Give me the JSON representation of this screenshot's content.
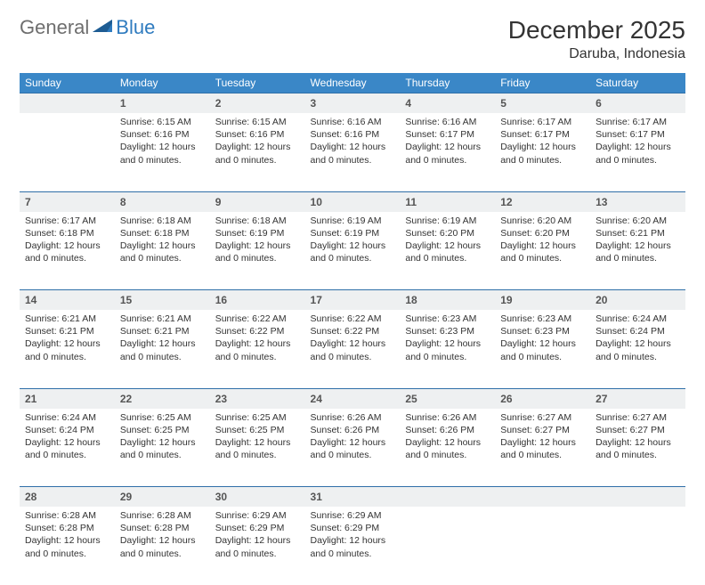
{
  "logo": {
    "general": "General",
    "blue": "Blue"
  },
  "title": "December 2025",
  "location": "Daruba, Indonesia",
  "colors": {
    "header_bg": "#3a87c7",
    "header_text": "#ffffff",
    "daynum_bg": "#eef0f1",
    "row_border": "#2f6fa8",
    "body_text": "#333333",
    "logo_gray": "#6e6e6e",
    "logo_blue": "#2f7bbf",
    "page_bg": "#ffffff"
  },
  "typography": {
    "title_fontsize": 28,
    "location_fontsize": 16,
    "weekday_fontsize": 12,
    "daynum_fontsize": 12,
    "cell_fontsize": 10.5
  },
  "weekdays": [
    "Sunday",
    "Monday",
    "Tuesday",
    "Wednesday",
    "Thursday",
    "Friday",
    "Saturday"
  ],
  "rows": [
    {
      "nums": [
        "",
        "1",
        "2",
        "3",
        "4",
        "5",
        "6"
      ],
      "cells": [
        null,
        {
          "sunrise": "6:15 AM",
          "sunset": "6:16 PM",
          "daylight": "12 hours and 0 minutes."
        },
        {
          "sunrise": "6:15 AM",
          "sunset": "6:16 PM",
          "daylight": "12 hours and 0 minutes."
        },
        {
          "sunrise": "6:16 AM",
          "sunset": "6:16 PM",
          "daylight": "12 hours and 0 minutes."
        },
        {
          "sunrise": "6:16 AM",
          "sunset": "6:17 PM",
          "daylight": "12 hours and 0 minutes."
        },
        {
          "sunrise": "6:17 AM",
          "sunset": "6:17 PM",
          "daylight": "12 hours and 0 minutes."
        },
        {
          "sunrise": "6:17 AM",
          "sunset": "6:17 PM",
          "daylight": "12 hours and 0 minutes."
        }
      ]
    },
    {
      "nums": [
        "7",
        "8",
        "9",
        "10",
        "11",
        "12",
        "13"
      ],
      "cells": [
        {
          "sunrise": "6:17 AM",
          "sunset": "6:18 PM",
          "daylight": "12 hours and 0 minutes."
        },
        {
          "sunrise": "6:18 AM",
          "sunset": "6:18 PM",
          "daylight": "12 hours and 0 minutes."
        },
        {
          "sunrise": "6:18 AM",
          "sunset": "6:19 PM",
          "daylight": "12 hours and 0 minutes."
        },
        {
          "sunrise": "6:19 AM",
          "sunset": "6:19 PM",
          "daylight": "12 hours and 0 minutes."
        },
        {
          "sunrise": "6:19 AM",
          "sunset": "6:20 PM",
          "daylight": "12 hours and 0 minutes."
        },
        {
          "sunrise": "6:20 AM",
          "sunset": "6:20 PM",
          "daylight": "12 hours and 0 minutes."
        },
        {
          "sunrise": "6:20 AM",
          "sunset": "6:21 PM",
          "daylight": "12 hours and 0 minutes."
        }
      ]
    },
    {
      "nums": [
        "14",
        "15",
        "16",
        "17",
        "18",
        "19",
        "20"
      ],
      "cells": [
        {
          "sunrise": "6:21 AM",
          "sunset": "6:21 PM",
          "daylight": "12 hours and 0 minutes."
        },
        {
          "sunrise": "6:21 AM",
          "sunset": "6:21 PM",
          "daylight": "12 hours and 0 minutes."
        },
        {
          "sunrise": "6:22 AM",
          "sunset": "6:22 PM",
          "daylight": "12 hours and 0 minutes."
        },
        {
          "sunrise": "6:22 AM",
          "sunset": "6:22 PM",
          "daylight": "12 hours and 0 minutes."
        },
        {
          "sunrise": "6:23 AM",
          "sunset": "6:23 PM",
          "daylight": "12 hours and 0 minutes."
        },
        {
          "sunrise": "6:23 AM",
          "sunset": "6:23 PM",
          "daylight": "12 hours and 0 minutes."
        },
        {
          "sunrise": "6:24 AM",
          "sunset": "6:24 PM",
          "daylight": "12 hours and 0 minutes."
        }
      ]
    },
    {
      "nums": [
        "21",
        "22",
        "23",
        "24",
        "25",
        "26",
        "27"
      ],
      "cells": [
        {
          "sunrise": "6:24 AM",
          "sunset": "6:24 PM",
          "daylight": "12 hours and 0 minutes."
        },
        {
          "sunrise": "6:25 AM",
          "sunset": "6:25 PM",
          "daylight": "12 hours and 0 minutes."
        },
        {
          "sunrise": "6:25 AM",
          "sunset": "6:25 PM",
          "daylight": "12 hours and 0 minutes."
        },
        {
          "sunrise": "6:26 AM",
          "sunset": "6:26 PM",
          "daylight": "12 hours and 0 minutes."
        },
        {
          "sunrise": "6:26 AM",
          "sunset": "6:26 PM",
          "daylight": "12 hours and 0 minutes."
        },
        {
          "sunrise": "6:27 AM",
          "sunset": "6:27 PM",
          "daylight": "12 hours and 0 minutes."
        },
        {
          "sunrise": "6:27 AM",
          "sunset": "6:27 PM",
          "daylight": "12 hours and 0 minutes."
        }
      ]
    },
    {
      "nums": [
        "28",
        "29",
        "30",
        "31",
        "",
        "",
        ""
      ],
      "cells": [
        {
          "sunrise": "6:28 AM",
          "sunset": "6:28 PM",
          "daylight": "12 hours and 0 minutes."
        },
        {
          "sunrise": "6:28 AM",
          "sunset": "6:28 PM",
          "daylight": "12 hours and 0 minutes."
        },
        {
          "sunrise": "6:29 AM",
          "sunset": "6:29 PM",
          "daylight": "12 hours and 0 minutes."
        },
        {
          "sunrise": "6:29 AM",
          "sunset": "6:29 PM",
          "daylight": "12 hours and 0 minutes."
        },
        null,
        null,
        null
      ]
    }
  ],
  "labels": {
    "sunrise": "Sunrise:",
    "sunset": "Sunset:",
    "daylight": "Daylight:"
  }
}
